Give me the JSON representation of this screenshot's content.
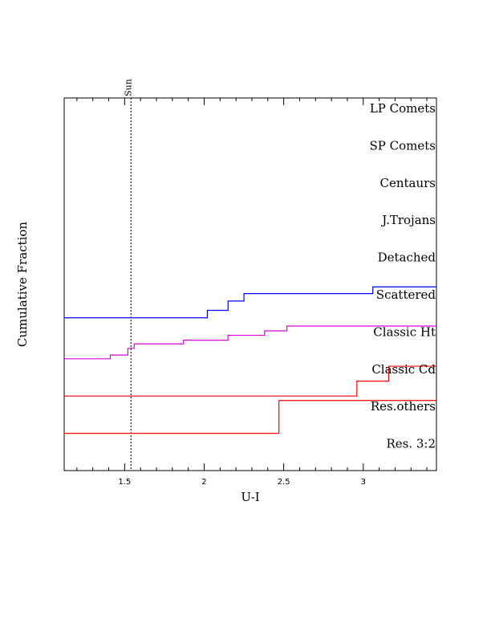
{
  "chart_data": {
    "type": "line",
    "xlabel": "U-I",
    "ylabel": "Cumulative Fraction",
    "xlim": [
      1.12,
      3.46
    ],
    "xticks": [
      1.5,
      2,
      2.5,
      3
    ],
    "xtick_labels": [
      "1.5",
      "2",
      "2.5",
      "3"
    ],
    "grid": false,
    "legend": "none",
    "reference_line": {
      "x": 1.54,
      "label": "Sun",
      "style": "dotted"
    },
    "panel_labels": [
      "LP Comets",
      "SP Comets",
      "Centaurs",
      "J.Trojans",
      "Detached",
      "Scattered",
      "Classic Ht",
      "Classic Cd",
      "Res.others",
      "Res. 3:2"
    ],
    "series": [
      {
        "panel": "Scattered",
        "color": "#0000ff",
        "steps": [
          [
            1.12,
            0.1
          ],
          [
            2.02,
            0.3
          ],
          [
            2.15,
            0.55
          ],
          [
            2.25,
            0.75
          ],
          [
            3.06,
            0.93
          ],
          [
            3.46,
            0.93
          ]
        ]
      },
      {
        "panel": "Classic Ht",
        "color": "#dd00dd",
        "steps": [
          [
            1.12,
            0.0
          ],
          [
            1.41,
            0.1
          ],
          [
            1.52,
            0.28
          ],
          [
            1.56,
            0.4
          ],
          [
            1.87,
            0.5
          ],
          [
            2.15,
            0.63
          ],
          [
            2.38,
            0.75
          ],
          [
            2.52,
            0.88
          ],
          [
            3.46,
            0.88
          ]
        ]
      },
      {
        "panel": "Classic Cd",
        "color": "#ff0000",
        "steps": [
          [
            1.12,
            0.0
          ],
          [
            2.96,
            0.4
          ],
          [
            3.16,
            0.8
          ],
          [
            3.46,
            0.8
          ]
        ]
      },
      {
        "panel": "Res.others",
        "color": "#ff0000",
        "steps": [
          [
            1.12,
            0.0
          ],
          [
            2.47,
            0.88
          ],
          [
            3.46,
            0.88
          ]
        ]
      }
    ]
  }
}
